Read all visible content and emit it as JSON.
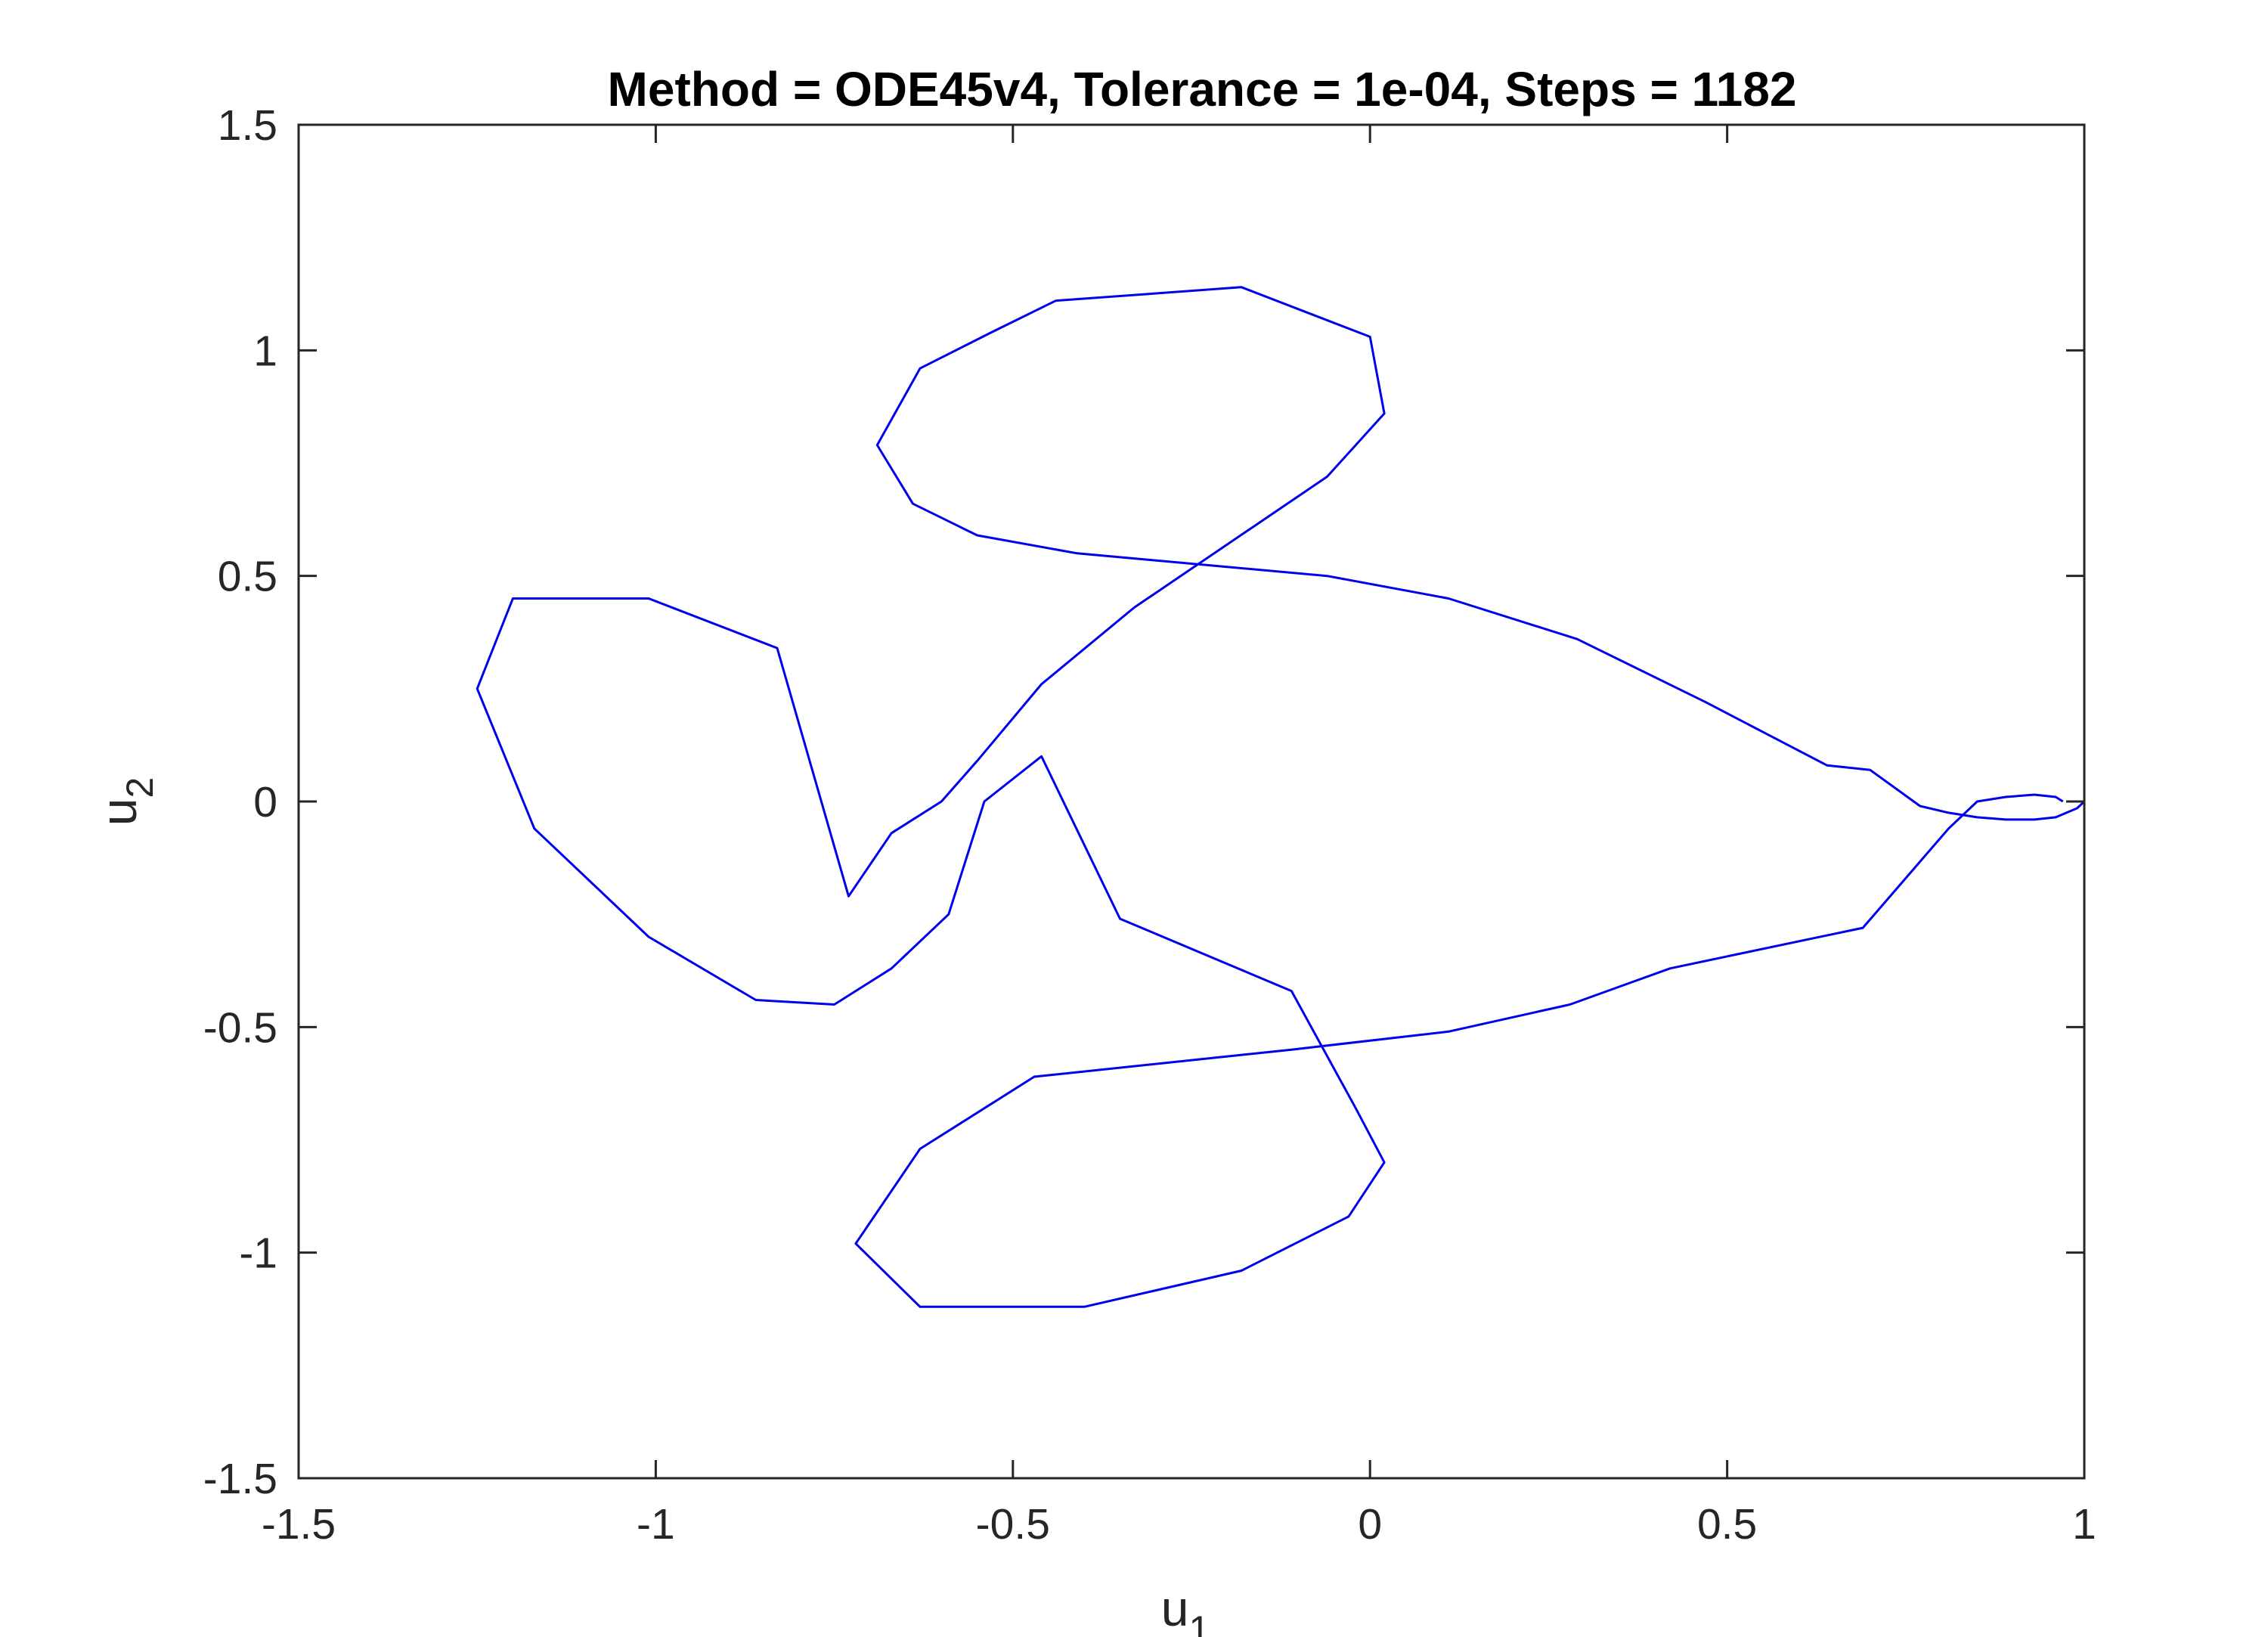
{
  "chart_data": {
    "type": "line",
    "title": "Method = ODE45v4, Tolerance = 1e-04, Steps = 1182",
    "xlabel": "u",
    "xlabel_subscript": "1",
    "ylabel": "u",
    "ylabel_subscript": "2",
    "xlim": [
      -1.5,
      1.0
    ],
    "ylim": [
      -1.5,
      1.5
    ],
    "xticks": [
      -1.5,
      -1,
      -0.5,
      0,
      0.5,
      1
    ],
    "xtick_labels": [
      "-1.5",
      "-1",
      "-0.5",
      "0",
      "0.5",
      "1"
    ],
    "yticks": [
      -1.5,
      -1,
      -0.5,
      0,
      0.5,
      1,
      1.5
    ],
    "ytick_labels": [
      "-1.5",
      "-1",
      "-0.5",
      "0",
      "0.5",
      "1",
      "1.5"
    ],
    "grid": false,
    "line_color": "#0000ee",
    "axis_color": "#262626",
    "series": [
      {
        "x": [
          1.0,
          0.99,
          0.96,
          0.93,
          0.89,
          0.85,
          0.81,
          0.77,
          0.7,
          0.64,
          0.47,
          0.29,
          0.11,
          -0.06,
          -0.41,
          -0.55,
          -0.64,
          -0.69,
          -0.63,
          -0.53,
          -0.44,
          -0.18,
          0.0,
          0.02,
          -0.06,
          -0.33,
          -0.46,
          -0.55,
          -0.6,
          -0.67,
          -0.73,
          -0.83,
          -1.01,
          -1.2,
          -1.25,
          -1.17,
          -1.01,
          -0.86,
          -0.75,
          -0.67,
          -0.59,
          -0.54,
          -0.46,
          -0.35,
          -0.11,
          -0.02,
          0.02,
          -0.03,
          -0.18,
          -0.4,
          -0.63,
          -0.72,
          -0.63,
          -0.47,
          -0.11,
          0.11,
          0.28,
          0.42,
          0.69,
          0.81,
          0.85,
          0.89,
          0.93,
          0.96,
          0.97
        ],
        "y": [
          0.0,
          -0.015,
          -0.035,
          -0.04,
          -0.04,
          -0.035,
          -0.025,
          -0.01,
          0.07,
          0.08,
          0.22,
          0.36,
          0.45,
          0.5,
          0.55,
          0.59,
          0.66,
          0.79,
          0.96,
          1.04,
          1.11,
          1.14,
          1.03,
          0.86,
          0.72,
          0.43,
          0.26,
          0.09,
          0.0,
          -0.07,
          -0.21,
          0.34,
          0.45,
          0.45,
          0.25,
          -0.06,
          -0.3,
          -0.44,
          -0.45,
          -0.37,
          -0.25,
          0.0,
          0.1,
          -0.26,
          -0.42,
          -0.68,
          -0.8,
          -0.92,
          -1.04,
          -1.12,
          -1.12,
          -0.98,
          -0.77,
          -0.61,
          -0.55,
          -0.51,
          -0.45,
          -0.37,
          -0.28,
          -0.06,
          0.0,
          0.01,
          0.015,
          0.01,
          0.0
        ]
      }
    ]
  }
}
